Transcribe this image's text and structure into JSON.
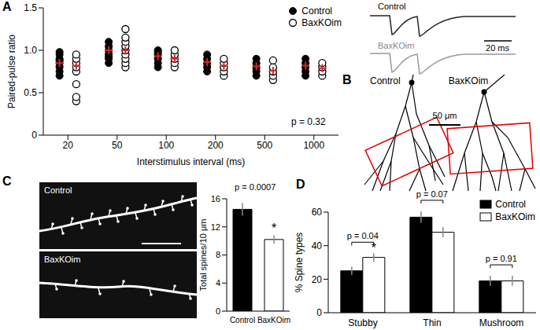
{
  "chart_data": [
    {
      "panel": "A",
      "type": "scatter",
      "categories": [
        "20",
        "50",
        "100",
        "200",
        "500",
        "1000"
      ],
      "x_label": "Interstimulus interval (ms)",
      "y_label": "Paired-pulse ratio",
      "ylim": [
        0,
        1.5
      ],
      "yticks": [
        0,
        0.5,
        {
          "value": 1,
          "label": "1.0"
        },
        1.5
      ],
      "legend": "upper right",
      "annotation": "p = 0.32",
      "series": [
        {
          "name": "Control",
          "color": "#000000",
          "marker": "filled_circle",
          "values": [
            [
              0.7,
              0.75,
              0.8,
              0.85,
              0.88,
              0.9,
              0.95,
              0.98
            ],
            [
              0.85,
              0.9,
              0.92,
              0.95,
              1.0,
              1.05,
              1.1
            ],
            [
              0.8,
              0.85,
              0.9,
              0.95,
              0.98,
              1.0
            ],
            [
              0.75,
              0.8,
              0.85,
              0.9,
              0.95
            ],
            [
              0.7,
              0.75,
              0.8,
              0.85,
              0.9
            ],
            [
              0.7,
              0.75,
              0.8,
              0.85,
              0.9
            ]
          ],
          "mean": [
            0.85,
            1.0,
            0.93,
            0.86,
            0.81,
            0.82
          ],
          "mean_error": [
            0.03,
            0.03,
            0.03,
            0.03,
            0.03,
            0.03
          ]
        },
        {
          "name": "BaxKOim",
          "color": "#000000",
          "marker": "open_circle",
          "values": [
            [
              0.4,
              0.45,
              0.6,
              0.75,
              0.8,
              0.85,
              0.9,
              0.95
            ],
            [
              0.8,
              0.85,
              0.9,
              0.95,
              1.0,
              1.05,
              1.1,
              1.15,
              1.25
            ],
            [
              0.8,
              0.85,
              0.9,
              0.95,
              1.0
            ],
            [
              0.7,
              0.75,
              0.8,
              0.85,
              0.9
            ],
            [
              0.65,
              0.7,
              0.75,
              0.8,
              0.88
            ],
            [
              0.7,
              0.75,
              0.8,
              0.85
            ]
          ],
          "mean": [
            0.82,
            1.0,
            0.9,
            0.82,
            0.76,
            0.79
          ],
          "mean_error": [
            0.07,
            0.04,
            0.03,
            0.03,
            0.03,
            0.03
          ]
        }
      ]
    },
    {
      "panel": "C",
      "type": "bar",
      "categories": [
        "Control",
        "BaxKOim"
      ],
      "values": [
        14.5,
        10.2
      ],
      "error": [
        0.9,
        0.6
      ],
      "colors": [
        "#000000",
        "#ffffff"
      ],
      "ylim": [
        0,
        16
      ],
      "yticks": [
        0,
        4,
        8,
        12,
        16
      ],
      "y_label": "Total spines/10 μm",
      "annotation": "p = 0.0007",
      "significance": [
        null,
        "*"
      ]
    },
    {
      "panel": "D",
      "type": "bar",
      "categories": [
        "Stubby",
        "Thin",
        "Mushroom"
      ],
      "y_label": "% Spine types",
      "ylim": [
        0,
        60
      ],
      "yticks": [
        0,
        20,
        40,
        60
      ],
      "legend": "upper right",
      "series": [
        {
          "name": "Control",
          "color": "#000000",
          "values": [
            25,
            57,
            19
          ],
          "error": [
            2.5,
            3.5,
            3
          ]
        },
        {
          "name": "BaxKOim",
          "color": "#ffffff",
          "values": [
            33,
            48,
            19
          ],
          "error": [
            2.5,
            3,
            3
          ],
          "significance": [
            "*",
            null,
            null
          ]
        }
      ],
      "comparisons": [
        "p = 0.04",
        "p = 0.07",
        "p = 0.91"
      ]
    }
  ],
  "traces": {
    "labels": [
      "Control",
      "BaxKOim"
    ],
    "scale_bar": "20 ms"
  },
  "morphology": {
    "panel": "B",
    "labels": [
      "Control",
      "BaxKOim"
    ],
    "scale_bar": "50 μm"
  },
  "micrographs": {
    "labels": [
      "Control",
      "BaxKOim"
    ]
  }
}
